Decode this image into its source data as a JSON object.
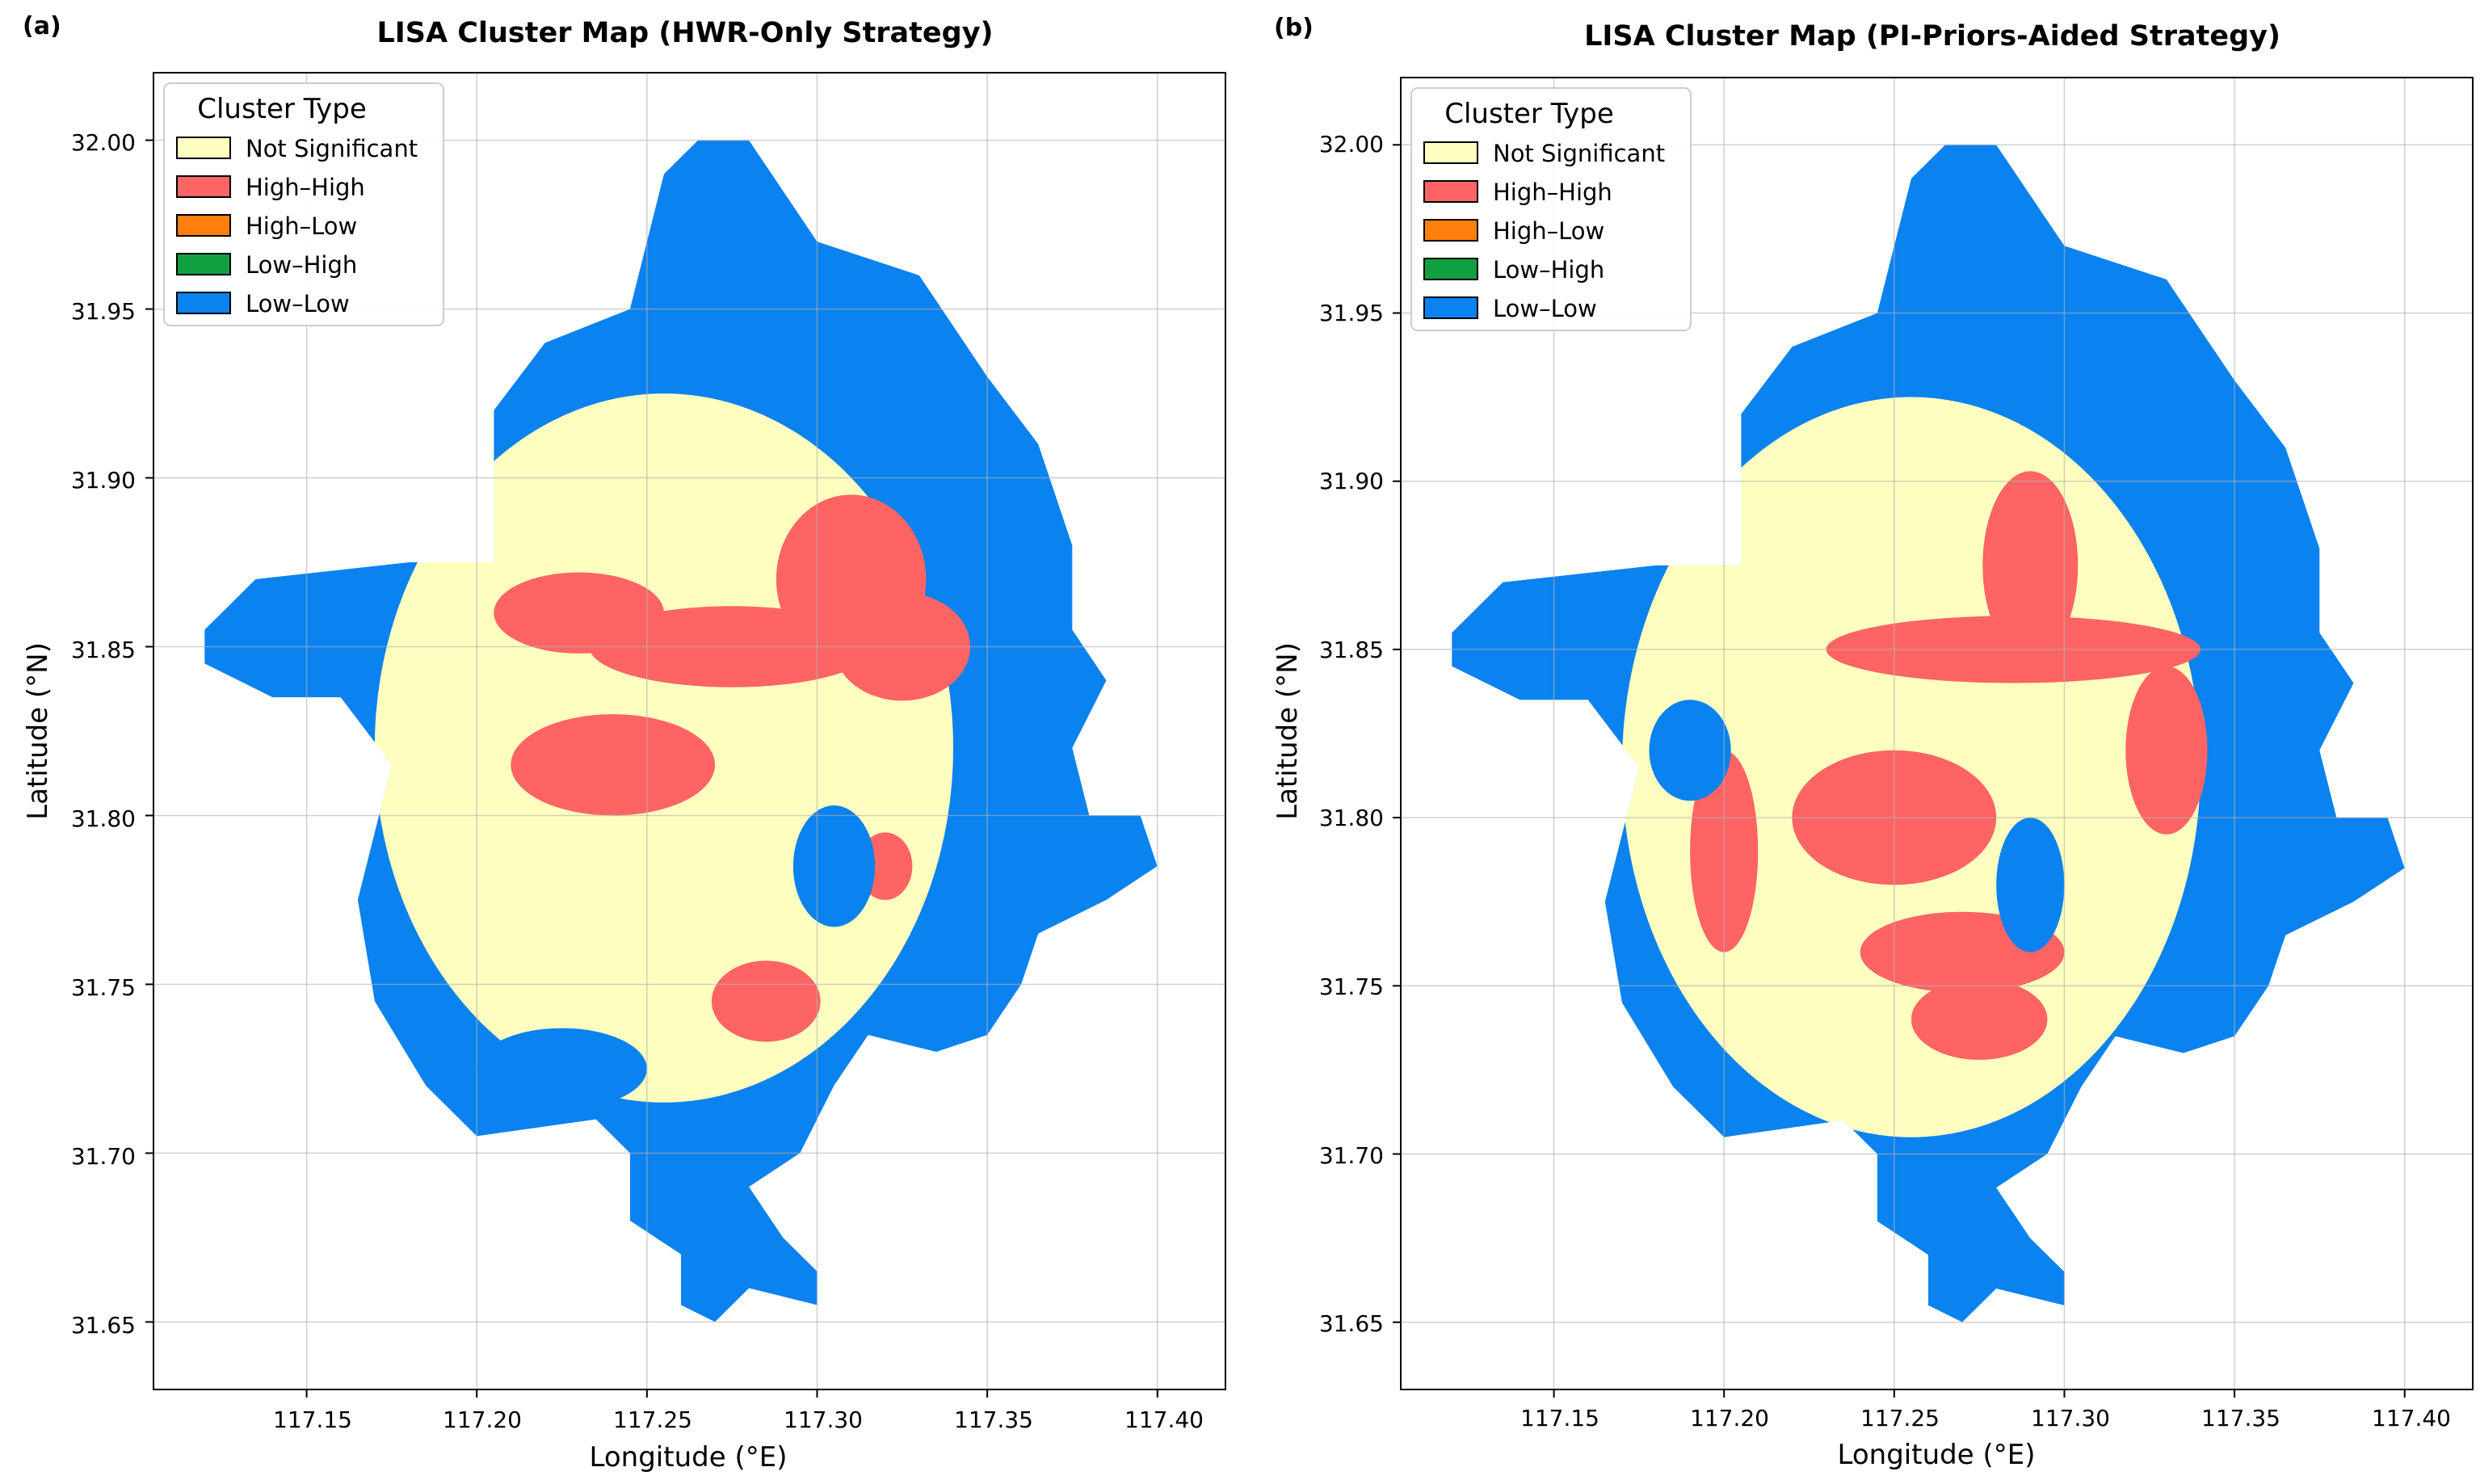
{
  "figure": {
    "panels": [
      {
        "letter": "(a)",
        "title": "LISA Cluster Map (HWR-Only Strategy)"
      },
      {
        "letter": "(b)",
        "title": "LISA Cluster Map (PI-Priors-Aided Strategy)"
      }
    ],
    "xlabel": "Longitude (°E)",
    "ylabel": "Latitude  (°N)",
    "xticks": [
      "117.15",
      "117.20",
      "117.25",
      "117.30",
      "117.35",
      "117.40"
    ],
    "yticks": [
      "31.65",
      "31.70",
      "31.75",
      "31.80",
      "31.85",
      "31.90",
      "31.95",
      "32.00"
    ],
    "legend": {
      "title": "Cluster Type",
      "items": [
        {
          "label": "Not Significant",
          "color": "#ffffc0"
        },
        {
          "label": "High–High",
          "color": "#ff6464"
        },
        {
          "label": "High–Low",
          "color": "#ff7f0e"
        },
        {
          "label": "Low–High",
          "color": "#10a040"
        },
        {
          "label": "Low–Low",
          "color": "#0a82f0"
        }
      ]
    }
  },
  "chart_data": [
    {
      "type": "heatmap",
      "title": "LISA Cluster Map (HWR-Only Strategy)",
      "xlabel": "Longitude (°E)",
      "ylabel": "Latitude  (°N)",
      "xlim": [
        117.105,
        117.42
      ],
      "ylim": [
        31.63,
        32.02
      ],
      "grid": true,
      "legend_position": "top-left",
      "categories": [
        "Not Significant",
        "High–High",
        "High–Low",
        "Low–High",
        "Low–Low"
      ],
      "boundary_lonlat": [
        [
          117.12,
          31.855
        ],
        [
          117.135,
          31.87
        ],
        [
          117.18,
          31.875
        ],
        [
          117.205,
          31.875
        ],
        [
          117.205,
          31.92
        ],
        [
          117.22,
          31.94
        ],
        [
          117.245,
          31.95
        ],
        [
          117.25,
          31.97
        ],
        [
          117.255,
          31.99
        ],
        [
          117.265,
          32.0
        ],
        [
          117.28,
          32.0
        ],
        [
          117.3,
          31.97
        ],
        [
          117.33,
          31.96
        ],
        [
          117.35,
          31.93
        ],
        [
          117.365,
          31.91
        ],
        [
          117.375,
          31.88
        ],
        [
          117.375,
          31.855
        ],
        [
          117.385,
          31.84
        ],
        [
          117.375,
          31.82
        ],
        [
          117.38,
          31.8
        ],
        [
          117.395,
          31.8
        ],
        [
          117.4,
          31.785
        ],
        [
          117.385,
          31.775
        ],
        [
          117.365,
          31.765
        ],
        [
          117.36,
          31.75
        ],
        [
          117.35,
          31.735
        ],
        [
          117.335,
          31.73
        ],
        [
          117.315,
          31.735
        ],
        [
          117.305,
          31.72
        ],
        [
          117.295,
          31.7
        ],
        [
          117.28,
          31.69
        ],
        [
          117.29,
          31.675
        ],
        [
          117.3,
          31.665
        ],
        [
          117.3,
          31.655
        ],
        [
          117.28,
          31.66
        ],
        [
          117.27,
          31.65
        ],
        [
          117.26,
          31.655
        ],
        [
          117.26,
          31.67
        ],
        [
          117.245,
          31.68
        ],
        [
          117.245,
          31.7
        ],
        [
          117.235,
          31.71
        ],
        [
          117.2,
          31.705
        ],
        [
          117.185,
          31.72
        ],
        [
          117.17,
          31.745
        ],
        [
          117.165,
          31.775
        ],
        [
          117.17,
          31.795
        ],
        [
          117.175,
          31.815
        ],
        [
          117.16,
          31.835
        ],
        [
          117.14,
          31.835
        ],
        [
          117.12,
          31.845
        ]
      ],
      "regions": [
        {
          "category": "Not Significant",
          "center": [
            117.255,
            31.82
          ],
          "radii": [
            0.085,
            0.105
          ]
        },
        {
          "category": "High–High",
          "center": [
            117.31,
            31.87
          ],
          "radii": [
            0.022,
            0.025
          ]
        },
        {
          "category": "High–High",
          "center": [
            117.325,
            31.85
          ],
          "radii": [
            0.02,
            0.016
          ]
        },
        {
          "category": "High–High",
          "center": [
            117.275,
            31.85
          ],
          "radii": [
            0.042,
            0.012
          ]
        },
        {
          "category": "High–High",
          "center": [
            117.23,
            31.86
          ],
          "radii": [
            0.025,
            0.012
          ]
        },
        {
          "category": "High–High",
          "center": [
            117.24,
            31.815
          ],
          "radii": [
            0.03,
            0.015
          ]
        },
        {
          "category": "High–High",
          "center": [
            117.285,
            31.745
          ],
          "radii": [
            0.016,
            0.012
          ]
        },
        {
          "category": "High–High",
          "center": [
            117.32,
            31.785
          ],
          "radii": [
            0.008,
            0.01
          ]
        },
        {
          "category": "Low–Low",
          "center": [
            117.305,
            31.785
          ],
          "radii": [
            0.012,
            0.018
          ]
        },
        {
          "category": "Low–Low",
          "center": [
            117.225,
            31.725
          ],
          "radii": [
            0.025,
            0.012
          ]
        }
      ]
    },
    {
      "type": "heatmap",
      "title": "LISA Cluster Map (PI-Priors-Aided Strategy)",
      "xlabel": "Longitude (°E)",
      "ylabel": "Latitude  (°N)",
      "xlim": [
        117.105,
        117.42
      ],
      "ylim": [
        31.63,
        32.02
      ],
      "grid": true,
      "legend_position": "top-left",
      "categories": [
        "Not Significant",
        "High–High",
        "High–Low",
        "Low–High",
        "Low–Low"
      ],
      "boundary_lonlat": [
        [
          117.12,
          31.855
        ],
        [
          117.135,
          31.87
        ],
        [
          117.18,
          31.875
        ],
        [
          117.205,
          31.875
        ],
        [
          117.205,
          31.92
        ],
        [
          117.22,
          31.94
        ],
        [
          117.245,
          31.95
        ],
        [
          117.25,
          31.97
        ],
        [
          117.255,
          31.99
        ],
        [
          117.265,
          32.0
        ],
        [
          117.28,
          32.0
        ],
        [
          117.3,
          31.97
        ],
        [
          117.33,
          31.96
        ],
        [
          117.35,
          31.93
        ],
        [
          117.365,
          31.91
        ],
        [
          117.375,
          31.88
        ],
        [
          117.375,
          31.855
        ],
        [
          117.385,
          31.84
        ],
        [
          117.375,
          31.82
        ],
        [
          117.38,
          31.8
        ],
        [
          117.395,
          31.8
        ],
        [
          117.4,
          31.785
        ],
        [
          117.385,
          31.775
        ],
        [
          117.365,
          31.765
        ],
        [
          117.36,
          31.75
        ],
        [
          117.35,
          31.735
        ],
        [
          117.335,
          31.73
        ],
        [
          117.315,
          31.735
        ],
        [
          117.305,
          31.72
        ],
        [
          117.295,
          31.7
        ],
        [
          117.28,
          31.69
        ],
        [
          117.29,
          31.675
        ],
        [
          117.3,
          31.665
        ],
        [
          117.3,
          31.655
        ],
        [
          117.28,
          31.66
        ],
        [
          117.27,
          31.65
        ],
        [
          117.26,
          31.655
        ],
        [
          117.26,
          31.67
        ],
        [
          117.245,
          31.68
        ],
        [
          117.245,
          31.7
        ],
        [
          117.235,
          31.71
        ],
        [
          117.2,
          31.705
        ],
        [
          117.185,
          31.72
        ],
        [
          117.17,
          31.745
        ],
        [
          117.165,
          31.775
        ],
        [
          117.17,
          31.795
        ],
        [
          117.175,
          31.815
        ],
        [
          117.16,
          31.835
        ],
        [
          117.14,
          31.835
        ],
        [
          117.12,
          31.845
        ]
      ],
      "regions": [
        {
          "category": "Not Significant",
          "center": [
            117.255,
            31.815
          ],
          "radii": [
            0.085,
            0.11
          ]
        },
        {
          "category": "High–High",
          "center": [
            117.29,
            31.875
          ],
          "radii": [
            0.014,
            0.028
          ]
        },
        {
          "category": "High–High",
          "center": [
            117.285,
            31.85
          ],
          "radii": [
            0.055,
            0.01
          ]
        },
        {
          "category": "High–High",
          "center": [
            117.25,
            31.8
          ],
          "radii": [
            0.03,
            0.02
          ]
        },
        {
          "category": "High–High",
          "center": [
            117.27,
            31.76
          ],
          "radii": [
            0.03,
            0.012
          ]
        },
        {
          "category": "High–High",
          "center": [
            117.275,
            31.74
          ],
          "radii": [
            0.02,
            0.012
          ]
        },
        {
          "category": "High–High",
          "center": [
            117.2,
            31.79
          ],
          "radii": [
            0.01,
            0.03
          ]
        },
        {
          "category": "High–High",
          "center": [
            117.33,
            31.82
          ],
          "radii": [
            0.012,
            0.025
          ]
        },
        {
          "category": "Low–Low",
          "center": [
            117.29,
            31.78
          ],
          "radii": [
            0.01,
            0.02
          ]
        },
        {
          "category": "Low–Low",
          "center": [
            117.19,
            31.82
          ],
          "radii": [
            0.012,
            0.015
          ]
        }
      ]
    }
  ]
}
